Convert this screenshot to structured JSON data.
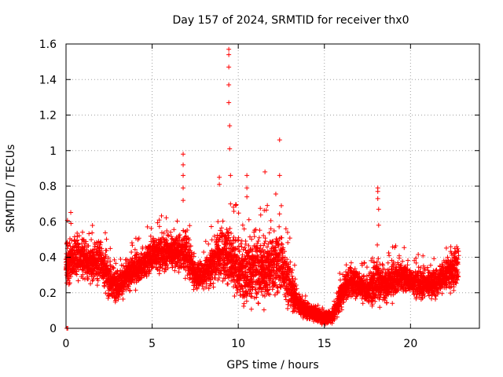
{
  "chart_data": {
    "type": "scatter",
    "title": "Day 157 of 2024, SRMTID for receiver thx0",
    "xlabel": "GPS time / hours",
    "ylabel": "SRMTID / TECUs",
    "xlim": [
      0,
      24
    ],
    "ylim": [
      0,
      1.6
    ],
    "xticks": [
      0,
      5,
      10,
      15,
      20
    ],
    "yticks": [
      0,
      0.2,
      0.4,
      0.6,
      0.8,
      1,
      1.2,
      1.4,
      1.6
    ],
    "ytick_labels": [
      "0",
      "0.2",
      "0.4",
      "0.6",
      "0.8",
      "1",
      "1.2",
      "1.4",
      "1.6"
    ],
    "grid": true,
    "marker": "plus",
    "color": "#ff0000",
    "envelope_hours": [
      0,
      0.5,
      1,
      1.5,
      2,
      2.5,
      3,
      3.5,
      4,
      4.5,
      5,
      5.5,
      6,
      6.5,
      7,
      7.5,
      8,
      8.5,
      9,
      9.5,
      10,
      10.5,
      11,
      11.5,
      12,
      12.5,
      13,
      13.5,
      14,
      14.5,
      15,
      15.5,
      16,
      16.5,
      17,
      17.5,
      18,
      18.5,
      19,
      19.5,
      20,
      20.5,
      21,
      21.5,
      22,
      22.5,
      22.8
    ],
    "envelope_low": [
      0.18,
      0.25,
      0.25,
      0.22,
      0.22,
      0.15,
      0.13,
      0.18,
      0.22,
      0.25,
      0.28,
      0.3,
      0.3,
      0.3,
      0.25,
      0.2,
      0.2,
      0.22,
      0.22,
      0.18,
      0.12,
      0.08,
      0.08,
      0.1,
      0.12,
      0.12,
      0.08,
      0.06,
      0.05,
      0.03,
      0.02,
      0.03,
      0.1,
      0.15,
      0.15,
      0.12,
      0.1,
      0.12,
      0.15,
      0.18,
      0.18,
      0.15,
      0.15,
      0.15,
      0.2,
      0.18,
      0.18
    ],
    "envelope_high": [
      0.55,
      0.55,
      0.55,
      0.5,
      0.55,
      0.4,
      0.35,
      0.4,
      0.45,
      0.45,
      0.55,
      0.55,
      0.55,
      0.55,
      0.6,
      0.4,
      0.4,
      0.5,
      0.65,
      0.65,
      0.55,
      0.55,
      0.6,
      0.55,
      0.6,
      0.6,
      0.4,
      0.2,
      0.15,
      0.12,
      0.1,
      0.1,
      0.3,
      0.4,
      0.35,
      0.3,
      0.45,
      0.35,
      0.4,
      0.4,
      0.35,
      0.35,
      0.35,
      0.35,
      0.4,
      0.5,
      0.5
    ],
    "spikes": [
      {
        "x": 0.05,
        "y": 0.0
      },
      {
        "x": 0.1,
        "y": 0.0
      },
      {
        "x": 6.8,
        "y": 0.98
      },
      {
        "x": 6.8,
        "y": 0.92
      },
      {
        "x": 6.8,
        "y": 0.86
      },
      {
        "x": 6.8,
        "y": 0.79
      },
      {
        "x": 6.8,
        "y": 0.72
      },
      {
        "x": 8.9,
        "y": 0.85
      },
      {
        "x": 8.9,
        "y": 0.81
      },
      {
        "x": 9.45,
        "y": 1.57
      },
      {
        "x": 9.45,
        "y": 1.54
      },
      {
        "x": 9.45,
        "y": 1.47
      },
      {
        "x": 9.45,
        "y": 1.37
      },
      {
        "x": 9.45,
        "y": 1.27
      },
      {
        "x": 9.5,
        "y": 1.14
      },
      {
        "x": 9.5,
        "y": 1.01
      },
      {
        "x": 9.55,
        "y": 0.86
      },
      {
        "x": 9.55,
        "y": 0.7
      },
      {
        "x": 10.5,
        "y": 0.86
      },
      {
        "x": 10.5,
        "y": 0.79
      },
      {
        "x": 10.5,
        "y": 0.74
      },
      {
        "x": 11.55,
        "y": 0.88
      },
      {
        "x": 12.4,
        "y": 1.06
      },
      {
        "x": 12.4,
        "y": 0.86
      },
      {
        "x": 12.5,
        "y": 0.69
      },
      {
        "x": 18.1,
        "y": 0.79
      },
      {
        "x": 18.1,
        "y": 0.77
      },
      {
        "x": 18.1,
        "y": 0.73
      },
      {
        "x": 18.15,
        "y": 0.67
      },
      {
        "x": 18.15,
        "y": 0.58
      }
    ]
  }
}
